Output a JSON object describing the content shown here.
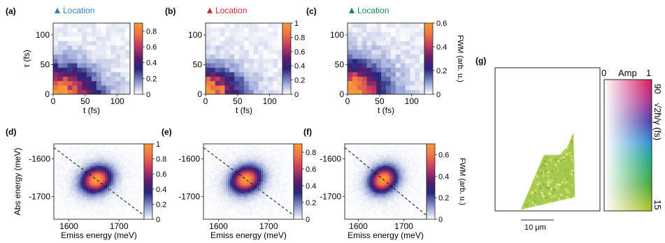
{
  "figure": {
    "panels": [
      {
        "id": "a",
        "label": "(a)",
        "marker_label": "Location",
        "marker_color": "#2f7fbf"
      },
      {
        "id": "b",
        "label": "(b)",
        "marker_label": "Location",
        "marker_color": "#d2262e"
      },
      {
        "id": "c",
        "label": "(c)",
        "marker_label": "Location",
        "marker_color": "#1a8a4a"
      },
      {
        "id": "d",
        "label": "(d)"
      },
      {
        "id": "e",
        "label": "(e)"
      },
      {
        "id": "f",
        "label": "(f)"
      },
      {
        "id": "g",
        "label": "(g)"
      }
    ],
    "fwm_label": "FWM (arb. u.)",
    "panel_g": {
      "amp_label": "Amp",
      "amp_min": "0",
      "amp_max": "1",
      "rate_label": "√2ħ/γ (fs)",
      "rate_top": "90",
      "rate_bottom": "15",
      "scale_bar": "10 μm",
      "dominant_color": "#9ec64a"
    },
    "colormap": [
      "#ffffff",
      "#9aa6d6",
      "#27277e",
      "#5b1d6e",
      "#c23a62",
      "#f1783f",
      "#f59a3a"
    ]
  },
  "chart_data": [
    {
      "type": "heatmap",
      "panel": "a",
      "xlabel": "t (fs)",
      "ylabel": "τ (fs)",
      "xlim": [
        0,
        120
      ],
      "ylim": [
        0,
        120
      ],
      "x_ticks": [
        "0",
        "50",
        "100"
      ],
      "y_ticks": [
        "0",
        "50",
        "100"
      ],
      "colorbar": {
        "range": [
          0,
          0.9
        ],
        "ticks": [
          "0",
          "0.2",
          "0.4",
          "0.6",
          "0.8"
        ]
      },
      "peak_value": 0.9,
      "decay_t_fs": 55,
      "decay_tau_fs": 40
    },
    {
      "type": "heatmap",
      "panel": "b",
      "xlabel": "t (fs)",
      "ylabel": "",
      "xlim": [
        0,
        120
      ],
      "ylim": [
        0,
        120
      ],
      "x_ticks": [
        "0",
        "50",
        "100"
      ],
      "y_ticks": [
        "0",
        "50",
        "100"
      ],
      "colorbar": {
        "range": [
          0,
          1
        ],
        "ticks": [
          "0",
          "0.2",
          "0.4",
          "0.6",
          "0.8",
          "1"
        ]
      },
      "peak_value": 1.0,
      "decay_t_fs": 45,
      "decay_tau_fs": 35
    },
    {
      "type": "heatmap",
      "panel": "c",
      "xlabel": "t (fs)",
      "ylabel": "",
      "xlim": [
        0,
        120
      ],
      "ylim": [
        0,
        120
      ],
      "x_ticks": [
        "0",
        "50",
        "100"
      ],
      "y_ticks": [
        "0",
        "50",
        "100"
      ],
      "colorbar": {
        "range": [
          0,
          0.6
        ],
        "ticks": [
          "0",
          "0.2",
          "0.4",
          "0.6"
        ],
        "label": "FWM (arb. u.)"
      },
      "peak_value": 0.6,
      "decay_t_fs": 50,
      "decay_tau_fs": 45
    },
    {
      "type": "heatmap",
      "panel": "d",
      "xlabel": "Emiss energy (meV)",
      "ylabel": "Abs energy (meV)",
      "xlim": [
        1570,
        1750
      ],
      "ylim": [
        -1760,
        -1560
      ],
      "x_ticks": [
        "1600",
        "1700"
      ],
      "y_ticks": [
        "-1600",
        "-1700"
      ],
      "colorbar": {
        "range": [
          0,
          1
        ],
        "ticks": [
          "0",
          "0.2",
          "0.4",
          "0.6",
          "0.8",
          "1"
        ]
      },
      "peak_emission_meV": 1655,
      "peak_absorption_meV": -1655,
      "peak_value": 1.0
    },
    {
      "type": "heatmap",
      "panel": "e",
      "xlabel": "Emiss energy (meV)",
      "ylabel": "",
      "xlim": [
        1570,
        1750
      ],
      "ylim": [
        -1760,
        -1560
      ],
      "x_ticks": [
        "1600",
        "1700"
      ],
      "y_ticks": [
        "-1600",
        "-1700"
      ],
      "colorbar": {
        "range": [
          0,
          0.9
        ],
        "ticks": [
          "0",
          "0.2",
          "0.4",
          "0.6",
          "0.8"
        ]
      },
      "peak_emission_meV": 1655,
      "peak_absorption_meV": -1655,
      "peak_value": 0.9
    },
    {
      "type": "heatmap",
      "panel": "f",
      "xlabel": "Emiss energy (meV)",
      "ylabel": "",
      "xlim": [
        1570,
        1750
      ],
      "ylim": [
        -1760,
        -1560
      ],
      "x_ticks": [
        "1600",
        "1700"
      ],
      "y_ticks": [
        "-1600",
        "-1700"
      ],
      "colorbar": {
        "range": [
          0,
          0.7
        ],
        "ticks": [
          "0",
          "0.2",
          "0.4",
          "0.6"
        ],
        "label": "FWM (arb. u.)"
      },
      "peak_emission_meV": 1655,
      "peak_absorption_meV": -1655,
      "peak_value": 0.7
    }
  ]
}
